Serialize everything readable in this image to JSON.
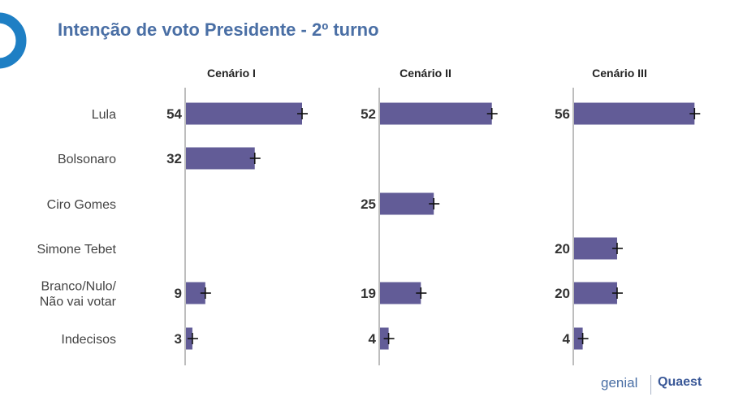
{
  "title": "Intenção de voto Presidente - 2º turno",
  "brand": {
    "genial": "genial",
    "quaest": "Quaest"
  },
  "chart_data": {
    "type": "bar",
    "orientation": "horizontal",
    "categories": [
      "Lula",
      "Bolsonaro",
      "Ciro Gomes",
      "Simone Tebet",
      "Branco/Nulo/\nNão vai votar",
      "Indecisos"
    ],
    "category_lines": [
      [
        "Lula"
      ],
      [
        "Bolsonaro"
      ],
      [
        "Ciro Gomes"
      ],
      [
        "Simone Tebet"
      ],
      [
        "Branco/Nulo/",
        "Não vai votar"
      ],
      [
        "Indecisos"
      ]
    ],
    "panels": [
      {
        "name": "Cenário I",
        "values": [
          54,
          32,
          null,
          null,
          9,
          3
        ]
      },
      {
        "name": "Cenário II",
        "values": [
          52,
          null,
          25,
          null,
          19,
          4
        ]
      },
      {
        "name": "Cenário III",
        "values": [
          56,
          null,
          null,
          20,
          20,
          4
        ]
      }
    ],
    "xlim": [
      0,
      60
    ],
    "bar_color": "#625c97",
    "error_bars": true,
    "grid": false
  }
}
